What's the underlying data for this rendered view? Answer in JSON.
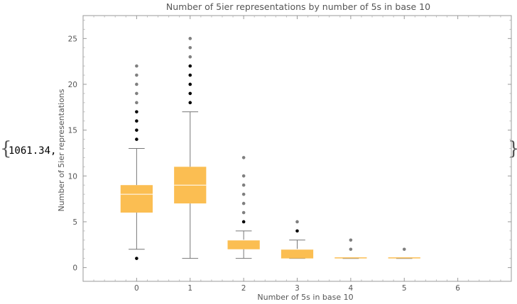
{
  "output": {
    "prefix": "1061.34,",
    "open_brace": "{",
    "close_brace": "}"
  },
  "chart_data": {
    "type": "box",
    "title": "Number of 5ier representations by number of 5s in base 10",
    "xlabel": "Number of 5s in base 10",
    "ylabel": "Number of 5ier representations",
    "xlim": [
      -1,
      7
    ],
    "ylim": [
      -1.5,
      27.5
    ],
    "x_ticks": [
      0,
      1,
      2,
      3,
      4,
      5,
      6
    ],
    "y_ticks": [
      0,
      5,
      10,
      15,
      20,
      25
    ],
    "box_color": "#fbbe52",
    "median_color": "#ffffff",
    "whisker_color": "#777777",
    "near_outlier_color": "#000000",
    "far_outlier_color": "#7f7f7f",
    "boxes": [
      {
        "x": 0,
        "min": 2,
        "q1": 6,
        "median": 8,
        "q3": 9,
        "max": 13,
        "near_outliers": [
          1,
          14,
          15,
          16,
          17
        ],
        "far_outliers": [
          18,
          19,
          20,
          21,
          22
        ]
      },
      {
        "x": 1,
        "min": 1,
        "q1": 7,
        "median": 9,
        "q3": 11,
        "max": 17,
        "near_outliers": [
          18,
          19,
          20,
          21,
          22
        ],
        "far_outliers": [
          23,
          24,
          25
        ]
      },
      {
        "x": 2,
        "min": 1,
        "q1": 2,
        "median": 3,
        "q3": 3,
        "max": 4,
        "near_outliers": [
          5
        ],
        "far_outliers": [
          6,
          7,
          8,
          9,
          10,
          12
        ]
      },
      {
        "x": 3,
        "min": 1,
        "q1": 1,
        "median": 2,
        "q3": 2,
        "max": 3,
        "near_outliers": [
          4
        ],
        "far_outliers": [
          5
        ]
      },
      {
        "x": 4,
        "min": 1,
        "q1": 1,
        "median": 1,
        "q3": 1,
        "max": 1,
        "near_outliers": [],
        "far_outliers": [
          2,
          3
        ]
      },
      {
        "x": 5,
        "min": 1,
        "q1": 1,
        "median": 1,
        "q3": 1,
        "max": 1,
        "near_outliers": [],
        "far_outliers": [
          2
        ]
      }
    ]
  }
}
